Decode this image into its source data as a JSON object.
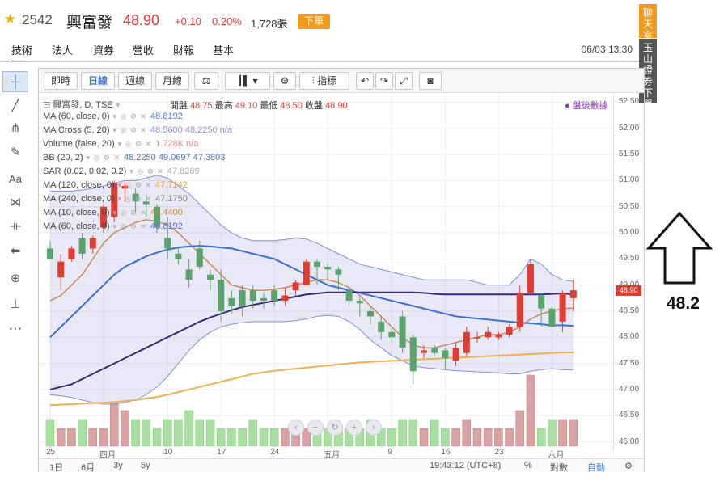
{
  "quote": {
    "code": "2542",
    "name": "興富發",
    "price": "48.90",
    "change": "+0.10",
    "percent": "0.20%",
    "volume": "1,728張",
    "order_label": "下單"
  },
  "nav": {
    "tabs": [
      "技術",
      "法人",
      "資券",
      "營收",
      "財報",
      "基本"
    ],
    "active_tab": "技術",
    "datetime": "06/03 13:30"
  },
  "side_tags": {
    "chat": "聊天室",
    "broker": "玉山證券下單"
  },
  "toolbar": {
    "intraday": "即時",
    "daily": "日線",
    "weekly": "週線",
    "monthly": "月線",
    "indicators": "指標"
  },
  "legend": {
    "series_title": "興富發, D, TSE",
    "ohlc": {
      "open_label": "開盤",
      "open": "48.75",
      "high_label": "最高",
      "high": "49.10",
      "low_label": "最低",
      "low": "48.50",
      "close_label": "收盤",
      "close": "48.90"
    },
    "after_hours": "盤後數據",
    "rows": [
      {
        "name": "MA (60, close, 0)",
        "values": "48.8192",
        "color": "#5b6cc7"
      },
      {
        "name": "MA Cross (5, 20)",
        "values": "48.5600  48.2250  n/a",
        "color": "#9a8fd0"
      },
      {
        "name": "Volume (false, 20)",
        "values": "1.728K  n/a",
        "color": "#e08a8a"
      },
      {
        "name": "BB (20, 2)",
        "values": "48.2250  49.0697  47.3803",
        "color": "#4a70c9"
      },
      {
        "name": "SAR (0.02, 0.02, 0.2)",
        "values": "47.8269",
        "color": "#aaaaaa"
      },
      {
        "name": "MA (120, close, 0)",
        "values": "47.7142",
        "color": "#e0a030"
      },
      {
        "name": "MA (240, close, 0)",
        "values": "47.1750",
        "color": "#888888"
      },
      {
        "name": "MA (10, close, 0)",
        "values": "48.4400",
        "color": "#c98a3a"
      },
      {
        "name": "MA (60, close, 0)",
        "values": "48.8192",
        "color": "#5b6cc7"
      }
    ]
  },
  "chart_data": {
    "type": "candlestick",
    "y_ticks": [
      "52.50",
      "52.00",
      "51.50",
      "51.00",
      "50.50",
      "50.00",
      "49.50",
      "49.00",
      "48.50",
      "48.00",
      "47.50",
      "47.00",
      "46.50",
      "46.00"
    ],
    "ylim": [
      45.9,
      52.6
    ],
    "x_ticks": [
      {
        "label": "25",
        "index": 0
      },
      {
        "label": "四月",
        "index": 5
      },
      {
        "label": "10",
        "index": 11
      },
      {
        "label": "17",
        "index": 16
      },
      {
        "label": "24",
        "index": 21
      },
      {
        "label": "五月",
        "index": 26
      },
      {
        "label": "9",
        "index": 32
      },
      {
        "label": "16",
        "index": 37
      },
      {
        "label": "23",
        "index": 42
      },
      {
        "label": "六月",
        "index": 47
      }
    ],
    "last_price": "48.90",
    "candles": [
      [
        49.7,
        49.5,
        49.85,
        49.5
      ],
      [
        49.15,
        49.45,
        49.6,
        48.9
      ],
      [
        49.5,
        49.7,
        49.75,
        49.45
      ],
      [
        49.9,
        49.6,
        50.0,
        49.5
      ],
      [
        49.7,
        49.9,
        49.95,
        49.6
      ],
      [
        50.1,
        50.5,
        50.55,
        50.0
      ],
      [
        50.3,
        50.95,
        51.0,
        50.2
      ],
      [
        50.85,
        50.9,
        51.0,
        50.6
      ],
      [
        50.75,
        50.6,
        50.85,
        50.4
      ],
      [
        50.6,
        50.55,
        50.75,
        50.3
      ],
      [
        50.5,
        50.1,
        50.55,
        50.0
      ],
      [
        49.9,
        49.7,
        50.3,
        49.5
      ],
      [
        49.6,
        49.5,
        49.7,
        49.4
      ],
      [
        49.3,
        49.1,
        49.5,
        48.95
      ],
      [
        49.7,
        49.35,
        49.85,
        49.3
      ],
      [
        49.2,
        49.1,
        49.3,
        48.9
      ],
      [
        49.1,
        48.5,
        49.3,
        48.3
      ],
      [
        48.75,
        48.6,
        48.9,
        48.45
      ],
      [
        48.9,
        48.6,
        49.0,
        48.4
      ],
      [
        48.9,
        48.7,
        49.0,
        48.55
      ],
      [
        48.75,
        48.7,
        48.85,
        48.55
      ],
      [
        48.9,
        48.7,
        49.0,
        48.6
      ],
      [
        48.7,
        48.8,
        48.95,
        48.6
      ],
      [
        48.9,
        49.05,
        49.1,
        48.8
      ],
      [
        49.0,
        49.45,
        49.5,
        49.0
      ],
      [
        49.45,
        49.35,
        49.5,
        49.0
      ],
      [
        49.35,
        49.3,
        49.4,
        49.1
      ],
      [
        49.3,
        49.2,
        49.35,
        48.9
      ],
      [
        48.9,
        48.7,
        49.0,
        48.6
      ],
      [
        48.7,
        48.65,
        48.8,
        48.4
      ],
      [
        48.5,
        48.4,
        48.6,
        48.25
      ],
      [
        48.3,
        48.1,
        48.4,
        47.95
      ],
      [
        48.1,
        48.0,
        48.2,
        47.9
      ],
      [
        48.4,
        47.8,
        48.5,
        47.7
      ],
      [
        48.0,
        47.35,
        48.05,
        47.1
      ],
      [
        47.7,
        47.75,
        47.85,
        47.6
      ],
      [
        47.8,
        47.7,
        47.85,
        47.65
      ],
      [
        47.75,
        47.6,
        47.8,
        47.4
      ],
      [
        47.55,
        47.8,
        47.9,
        47.45
      ],
      [
        47.7,
        48.1,
        48.2,
        47.65
      ],
      [
        48.0,
        48.0,
        48.1,
        47.9
      ],
      [
        48.0,
        48.1,
        48.2,
        47.95
      ],
      [
        48.0,
        48.05,
        48.1,
        47.95
      ],
      [
        48.05,
        48.2,
        48.25,
        48.0
      ],
      [
        48.2,
        48.85,
        49.0,
        48.1
      ],
      [
        48.85,
        49.4,
        49.5,
        48.8
      ],
      [
        48.8,
        48.55,
        48.85,
        48.2
      ],
      [
        48.55,
        48.2,
        48.6,
        48.2
      ],
      [
        48.3,
        48.85,
        48.9,
        48.1
      ],
      [
        48.75,
        48.9,
        49.1,
        48.5
      ]
    ],
    "volume": [
      3,
      2,
      2,
      3,
      2,
      2,
      5,
      4,
      3,
      3,
      2,
      3,
      3,
      4,
      3,
      3,
      2,
      2,
      2,
      3,
      2,
      2,
      2,
      2,
      2,
      2,
      2,
      2,
      2,
      2,
      3,
      2,
      2,
      3,
      3,
      2,
      3,
      2,
      2,
      3,
      2,
      2,
      2,
      2,
      4,
      8,
      2,
      3,
      3,
      3
    ],
    "ma_purple": [
      47.0,
      47.05,
      47.1,
      47.2,
      47.3,
      47.4,
      47.5,
      47.6,
      47.7,
      47.8,
      47.9,
      48.0,
      48.1,
      48.2,
      48.3,
      48.38,
      48.45,
      48.52,
      48.58,
      48.62,
      48.66,
      48.7,
      48.74,
      48.78,
      48.82,
      48.84,
      48.86,
      48.86,
      48.86,
      48.86,
      48.86,
      48.86,
      48.86,
      48.86,
      48.86,
      48.85,
      48.83,
      48.82,
      48.82,
      48.82,
      48.82,
      48.82,
      48.82,
      48.82,
      48.82,
      48.82,
      48.82,
      48.83,
      48.84,
      48.82
    ],
    "ma_orange": [
      46.7,
      46.71,
      46.72,
      46.73,
      46.74,
      46.75,
      46.76,
      46.78,
      46.8,
      46.83,
      46.86,
      46.9,
      46.95,
      47.0,
      47.05,
      47.1,
      47.15,
      47.2,
      47.25,
      47.3,
      47.33,
      47.36,
      47.38,
      47.4,
      47.42,
      47.44,
      47.46,
      47.48,
      47.5,
      47.52,
      47.53,
      47.54,
      47.55,
      47.56,
      47.57,
      47.58,
      47.59,
      47.6,
      47.61,
      47.62,
      47.63,
      47.64,
      47.65,
      47.66,
      47.67,
      47.68,
      47.69,
      47.7,
      47.71,
      47.71
    ],
    "ma_blue": [
      48.0,
      48.2,
      48.4,
      48.6,
      48.8,
      49.0,
      49.2,
      49.35,
      49.45,
      49.55,
      49.62,
      49.68,
      49.72,
      49.74,
      49.75,
      49.74,
      49.72,
      49.7,
      49.65,
      49.6,
      49.55,
      49.5,
      49.4,
      49.3,
      49.2,
      49.1,
      49.0,
      48.95,
      48.9,
      48.85,
      48.8,
      48.75,
      48.7,
      48.65,
      48.6,
      48.55,
      48.5,
      48.45,
      48.4,
      48.38,
      48.36,
      48.34,
      48.32,
      48.3,
      48.28,
      48.27,
      48.25,
      48.23,
      48.23,
      48.22
    ],
    "ma_brown": [
      48.7,
      48.8,
      49.0,
      49.2,
      49.5,
      49.8,
      50.0,
      50.1,
      50.2,
      50.25,
      50.22,
      50.15,
      50.0,
      49.8,
      49.6,
      49.4,
      49.2,
      49.0,
      48.95,
      48.9,
      48.9,
      48.92,
      48.95,
      49.0,
      49.05,
      49.1,
      49.1,
      49.05,
      48.95,
      48.8,
      48.6,
      48.4,
      48.2,
      48.0,
      47.85,
      47.8,
      47.8,
      47.85,
      47.9,
      47.95,
      48.0,
      48.05,
      48.05,
      48.1,
      48.2,
      48.35,
      48.45,
      48.5,
      48.55,
      48.56
    ],
    "bb_upper": [
      50.8,
      50.8,
      50.8,
      50.82,
      50.85,
      50.9,
      50.95,
      51.0,
      51.0,
      51.05,
      51.1,
      51.05,
      50.9,
      50.75,
      50.55,
      50.35,
      50.15,
      50.0,
      49.9,
      49.85,
      49.85,
      49.85,
      49.87,
      49.9,
      49.88,
      49.8,
      49.7,
      49.6,
      49.5,
      49.4,
      49.35,
      49.3,
      49.25,
      49.2,
      49.15,
      49.1,
      49.1,
      49.1,
      49.1,
      49.1,
      49.05,
      49.0,
      49.0,
      49.0,
      49.2,
      49.5,
      49.4,
      49.2,
      49.1,
      49.07
    ],
    "bb_lower": [
      46.9,
      46.88,
      46.85,
      46.8,
      46.75,
      46.72,
      46.72,
      46.75,
      46.8,
      46.9,
      47.05,
      47.25,
      47.5,
      47.75,
      47.95,
      48.1,
      48.2,
      48.25,
      48.28,
      48.3,
      48.3,
      48.3,
      48.3,
      48.32,
      48.35,
      48.4,
      48.42,
      48.4,
      48.3,
      48.15,
      47.95,
      47.8,
      47.65,
      47.55,
      47.45,
      47.42,
      47.4,
      47.38,
      47.36,
      47.35,
      47.34,
      47.33,
      47.32,
      47.3,
      47.3,
      47.35,
      47.38,
      47.4,
      47.38,
      47.38
    ]
  },
  "bottom_bar": {
    "ranges": [
      "1日",
      "6月",
      "3y",
      "5y"
    ],
    "clock": "19:43:12 (UTC+8)",
    "percent": "%",
    "log": "對數",
    "auto": "自動"
  },
  "annotation": {
    "value": "48.2"
  },
  "colors": {
    "up": "#e03c31",
    "down": "#5aa36a",
    "accent": "#f39a1e"
  }
}
